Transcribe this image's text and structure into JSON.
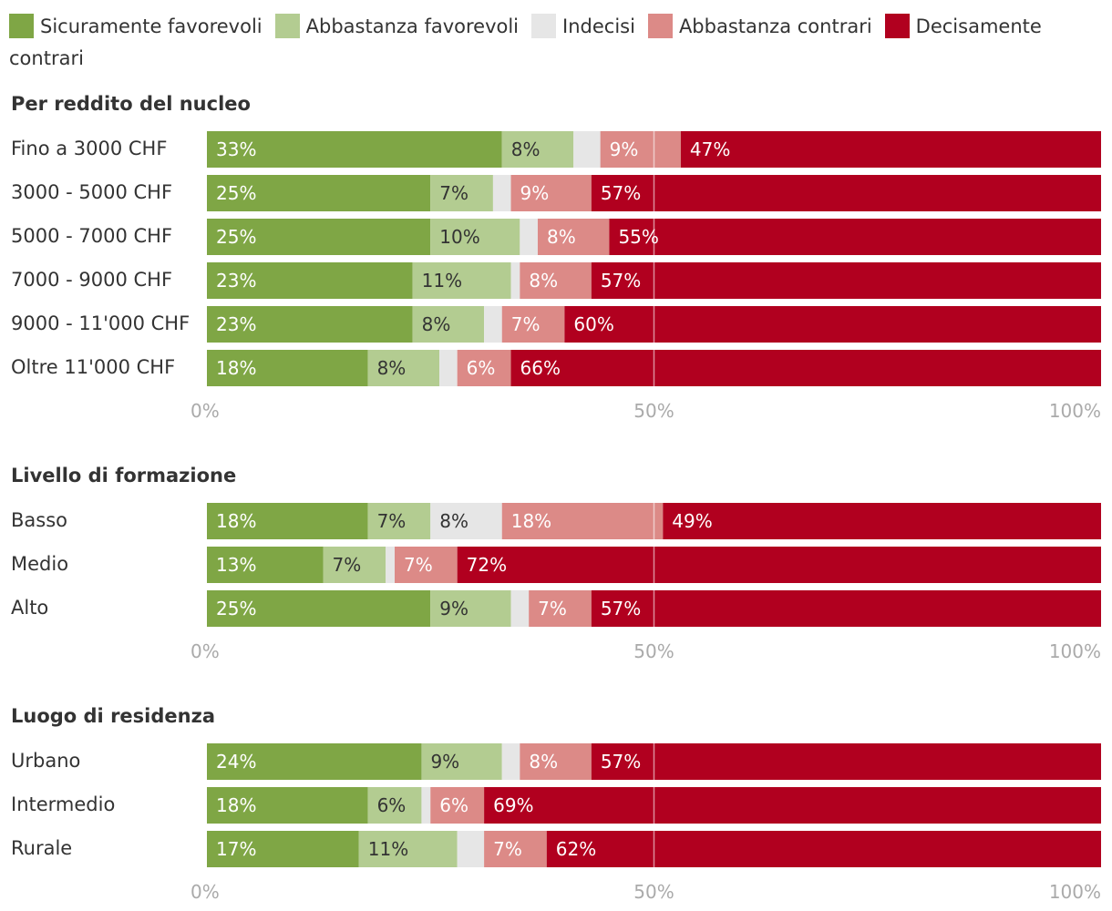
{
  "legend": [
    {
      "label": "Sicuramente favorevoli",
      "color": "#7fa645"
    },
    {
      "label": "Abbastanza favorevoli",
      "color": "#b3cc91"
    },
    {
      "label": "Indecisi",
      "color": "#e6e6e6"
    },
    {
      "label": "Abbastanza contrari",
      "color": "#dc8a87"
    },
    {
      "label": "Decisamente contrari",
      "color": "#b1001f"
    }
  ],
  "chart_data": [
    {
      "type": "bar",
      "stacked": true,
      "orientation": "horizontal",
      "title": "Per reddito del nucleo",
      "categories": [
        "Fino a 3000 CHF",
        "3000 - 5000 CHF",
        "5000 - 7000 CHF",
        "7000 - 9000 CHF",
        "9000 - 11'000 CHF",
        "Oltre 11'000 CHF"
      ],
      "series": [
        {
          "name": "Sicuramente favorevoli",
          "values": [
            33,
            25,
            25,
            23,
            23,
            18
          ],
          "labels": [
            "33%",
            "25%",
            "25%",
            "23%",
            "23%",
            "18%"
          ]
        },
        {
          "name": "Abbastanza favorevoli",
          "values": [
            8,
            7,
            10,
            11,
            8,
            8
          ],
          "labels": [
            "8%",
            "7%",
            "10%",
            "11%",
            "8%",
            "8%"
          ]
        },
        {
          "name": "Indecisi",
          "values": [
            3,
            2,
            2,
            1,
            2,
            2
          ],
          "labels": [
            "",
            "",
            "",
            "",
            "",
            ""
          ]
        },
        {
          "name": "Abbastanza contrari",
          "values": [
            9,
            9,
            8,
            8,
            7,
            6
          ],
          "labels": [
            "9%",
            "9%",
            "8%",
            "8%",
            "7%",
            "6%"
          ]
        },
        {
          "name": "Decisamente contrari",
          "values": [
            47,
            57,
            55,
            57,
            60,
            66
          ],
          "labels": [
            "47%",
            "57%",
            "55%",
            "57%",
            "60%",
            "66%"
          ]
        }
      ],
      "xlim": [
        0,
        100
      ],
      "ticks": [
        0,
        50,
        100
      ],
      "tick_labels": [
        "0%",
        "50%",
        "100%"
      ]
    },
    {
      "type": "bar",
      "stacked": true,
      "orientation": "horizontal",
      "title": "Livello di formazione",
      "categories": [
        "Basso",
        "Medio",
        "Alto"
      ],
      "series": [
        {
          "name": "Sicuramente favorevoli",
          "values": [
            18,
            13,
            25
          ],
          "labels": [
            "18%",
            "13%",
            "25%"
          ]
        },
        {
          "name": "Abbastanza favorevoli",
          "values": [
            7,
            7,
            9
          ],
          "labels": [
            "7%",
            "7%",
            "9%"
          ]
        },
        {
          "name": "Indecisi",
          "values": [
            8,
            1,
            2
          ],
          "labels": [
            "8%",
            "",
            ""
          ]
        },
        {
          "name": "Abbastanza contrari",
          "values": [
            18,
            7,
            7
          ],
          "labels": [
            "18%",
            "7%",
            "7%"
          ]
        },
        {
          "name": "Decisamente contrari",
          "values": [
            49,
            72,
            57
          ],
          "labels": [
            "49%",
            "72%",
            "57%"
          ]
        }
      ],
      "xlim": [
        0,
        100
      ],
      "ticks": [
        0,
        50,
        100
      ],
      "tick_labels": [
        "0%",
        "50%",
        "100%"
      ]
    },
    {
      "type": "bar",
      "stacked": true,
      "orientation": "horizontal",
      "title": "Luogo di residenza",
      "categories": [
        "Urbano",
        "Intermedio",
        "Rurale"
      ],
      "series": [
        {
          "name": "Sicuramente favorevoli",
          "values": [
            24,
            18,
            17
          ],
          "labels": [
            "24%",
            "18%",
            "17%"
          ]
        },
        {
          "name": "Abbastanza favorevoli",
          "values": [
            9,
            6,
            11
          ],
          "labels": [
            "9%",
            "6%",
            "11%"
          ]
        },
        {
          "name": "Indecisi",
          "values": [
            2,
            1,
            3
          ],
          "labels": [
            "",
            "",
            ""
          ]
        },
        {
          "name": "Abbastanza contrari",
          "values": [
            8,
            6,
            7
          ],
          "labels": [
            "8%",
            "6%",
            "7%"
          ]
        },
        {
          "name": "Decisamente contrari",
          "values": [
            57,
            69,
            62
          ],
          "labels": [
            "57%",
            "69%",
            "62%"
          ]
        }
      ],
      "xlim": [
        0,
        100
      ],
      "ticks": [
        0,
        50,
        100
      ],
      "tick_labels": [
        "0%",
        "50%",
        "100%"
      ]
    }
  ]
}
